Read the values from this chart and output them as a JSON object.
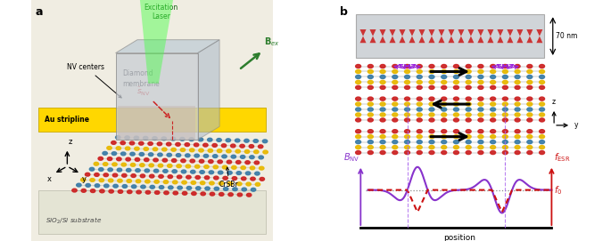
{
  "fig_width": 6.85,
  "fig_height": 2.71,
  "dpi": 100,
  "panel_a_label": "a",
  "panel_b_label": "b",
  "bg_color": "#f0ede2",
  "gold_color": "#FFD700",
  "gold_dark": "#C8A800",
  "diamond_mem_color": "#c8cdd4",
  "diamond_alpha": 0.75,
  "laser_color": "#44ff44",
  "laser_alpha": 0.45,
  "bex_color": "#2d7d2d",
  "snv_color": "#cc2222",
  "cr_color": "#3a7ca8",
  "s_color": "#e8b800",
  "br_color": "#cc2222",
  "purple_color": "#8833cc",
  "red_color": "#cc1111",
  "substrate_color": "#e8e8d8",
  "excitation_label": "Excitation\nLaser",
  "bex_label": "B_{ex}",
  "snv_hat_label": "\\hat{s}_{NV}",
  "nv_centers_label": "NV centers",
  "au_stripline_label": "Au stripline",
  "diamond_membrane_label": "Diamond\nmembrane",
  "crsbr_label": "CrSBr",
  "substrate_label": "SiO$_2$/Si substrate",
  "nm_label": "70 nm",
  "position_label": "position",
  "bnv_label": "B_{NV}",
  "fesr_label": "f_{ESR}",
  "f0_label": "f_0"
}
